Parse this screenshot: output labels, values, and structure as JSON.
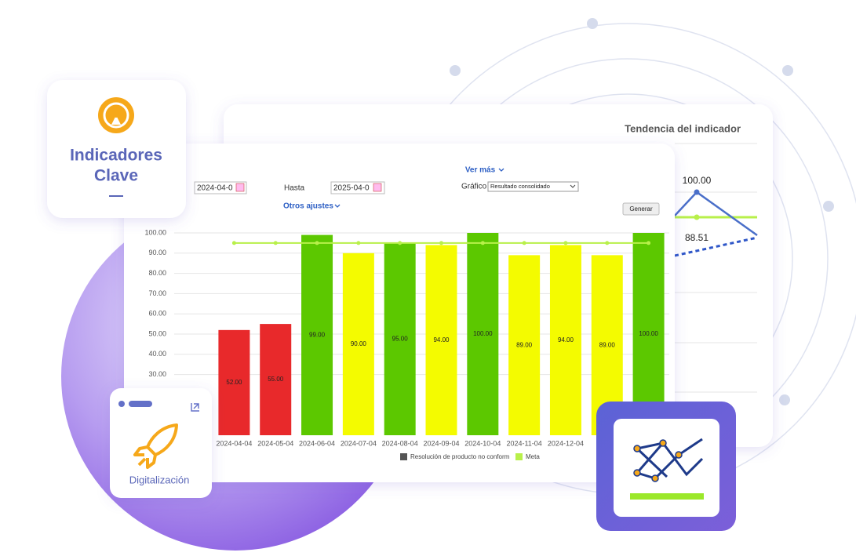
{
  "chart_data": {
    "type": "bar",
    "categories": [
      "2024-04-04",
      "2024-05-04",
      "2024-06-04",
      "2024-07-04",
      "2024-08-04",
      "2024-09-04",
      "2024-10-04",
      "2024-11-04",
      "2024-12-04",
      null,
      null
    ],
    "series": [
      {
        "name": "Resolución de producto no conform",
        "color": "#555555",
        "colors": [
          "#e8292b",
          "#e8292b",
          "#5cc800",
          "#f4fb00",
          "#5cc800",
          "#f4fb00",
          "#5cc800",
          "#f4fb00",
          "#f4fb00",
          "#f4fb00",
          "#5cc800"
        ],
        "values": [
          52,
          55,
          99,
          90,
          95,
          94,
          100,
          89,
          94,
          89,
          100
        ],
        "value_labels": [
          "52.00",
          "55.00",
          "99.00",
          "90.00",
          "95.00",
          "94.00",
          "100.00",
          "89.00",
          "94.00",
          "89.00",
          "100.00"
        ]
      },
      {
        "name": "Meta",
        "type": "line",
        "color": "#b8f04a",
        "values": [
          95,
          95,
          95,
          95,
          95,
          95,
          95,
          95,
          95,
          95,
          95
        ]
      }
    ],
    "ylim": [
      0,
      100
    ],
    "yticks": [
      {
        "value": 30,
        "label": "30.00"
      },
      {
        "value": 40,
        "label": "40.00"
      },
      {
        "value": 50,
        "label": "50.00"
      },
      {
        "value": 60,
        "label": "60.00"
      },
      {
        "value": 70,
        "label": "70.00"
      },
      {
        "value": 80,
        "label": "80.00"
      },
      {
        "value": 90,
        "label": "90.00"
      },
      {
        "value": 100,
        "label": "100.00"
      }
    ],
    "grid": true
  },
  "form": {
    "ver_mas": "Ver más",
    "desde_value": "2024-04-0",
    "hasta_label": "Hasta",
    "hasta_value": "2025-04-0",
    "grafico_label": "Gráfico",
    "grafico_value": "Resultado consolidado",
    "otros_ajustes": "Otros ajustes",
    "generar": "Generar"
  },
  "back_card": {
    "title": "Tendencia del indicador",
    "labels": [
      "100.00",
      "88.51"
    ]
  },
  "cards": {
    "indicadores": [
      "Indicadores",
      "Clave"
    ],
    "digitalizacion": "Digitalización"
  }
}
